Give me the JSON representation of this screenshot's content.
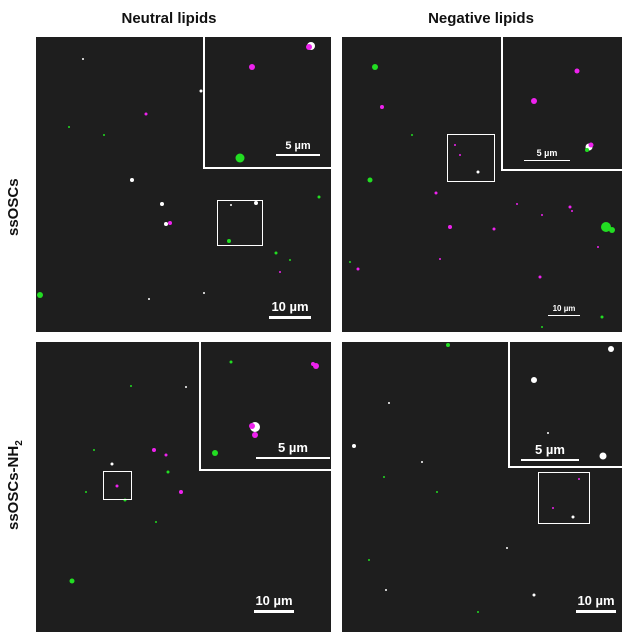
{
  "column_titles": [
    "Neutral lipids",
    "Negative lipids"
  ],
  "row_titles": [
    "ssOSCs",
    "ssOSCs-NH",
    "2"
  ],
  "panels": [
    {
      "scale_label": "10 µm",
      "inset_scale_label": "5 µm"
    },
    {
      "scale_label": "10 µm",
      "inset_scale_label": "5 µm"
    },
    {
      "scale_label": "10 µm",
      "inset_scale_label": "5 µm"
    },
    {
      "scale_label": "10 µm",
      "inset_scale_label": "5 µm"
    }
  ],
  "colors": {
    "background": "#1e1e1e",
    "green": "#22dd22",
    "magenta": "#ee22ee",
    "white": "#ffffff"
  }
}
